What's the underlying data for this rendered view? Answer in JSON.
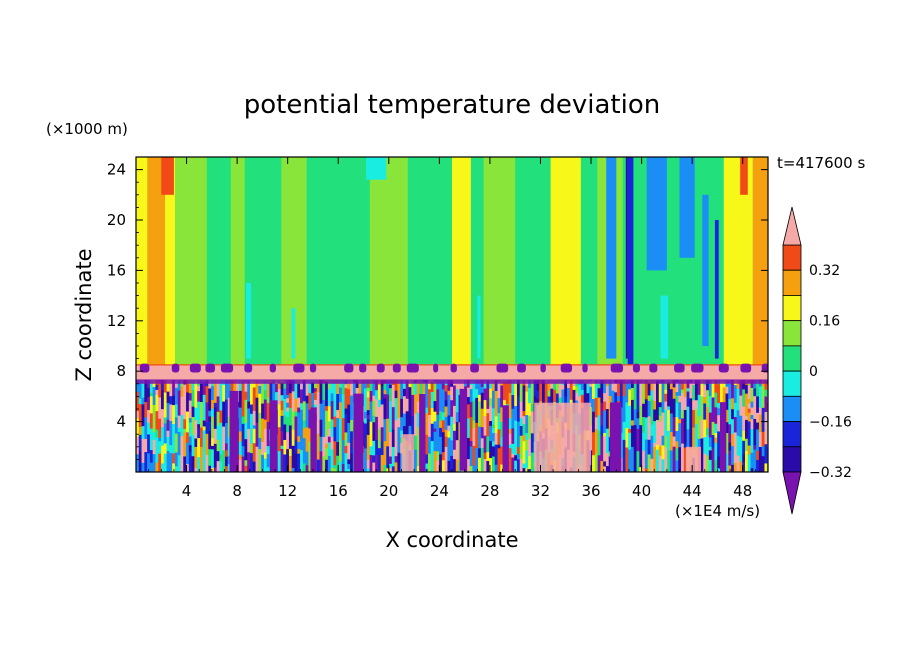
{
  "chart_data": {
    "type": "heatmap",
    "title": "potential temperature deviation",
    "xlabel": "X coordinate",
    "ylabel": "Z coordinate",
    "x_unit": "(×1E4 m/s)",
    "y_unit": "(×1000 m)",
    "time_label": "t=417600 s",
    "xlim": [
      0,
      50
    ],
    "ylim": [
      0,
      25
    ],
    "x_ticks": [
      4,
      8,
      12,
      16,
      20,
      24,
      28,
      32,
      36,
      40,
      44,
      48
    ],
    "y_ticks": [
      4,
      8,
      12,
      16,
      20,
      24
    ],
    "colorbar": {
      "tick_labels": [
        "0.32",
        "0.16",
        "0",
        "−0.16",
        "−0.32"
      ],
      "tick_values": [
        0.32,
        0.16,
        0,
        -0.16,
        -0.32
      ],
      "levels": [
        -0.4,
        -0.32,
        -0.24,
        -0.16,
        -0.08,
        0,
        0.08,
        0.16,
        0.24,
        0.32,
        0.4
      ],
      "colors": [
        "#7a12b0",
        "#2a0aa8",
        "#1a24d8",
        "#1a8ef5",
        "#19ece0",
        "#22e07c",
        "#8ae53a",
        "#f7f71a",
        "#f4a00f",
        "#f04a18",
        "#f5aaa8"
      ]
    },
    "layers": {
      "boundary_layer_top_km": 7,
      "inversion_band_km": [
        7.3,
        8.5
      ],
      "upper_field_typical_value": 0
    }
  }
}
